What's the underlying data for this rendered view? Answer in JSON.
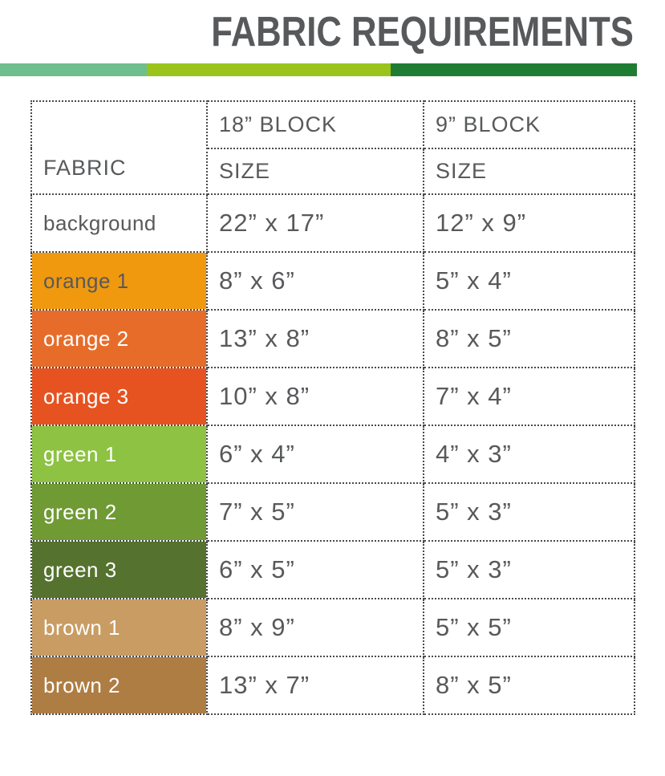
{
  "page": {
    "title": "FABRIC REQUIREMENTS"
  },
  "accent_bar": {
    "segments": [
      {
        "name": "sage-green",
        "color": "#6FBE8D"
      },
      {
        "name": "lime-green",
        "color": "#9AC41C"
      },
      {
        "name": "forest-green",
        "color": "#1E7D33"
      }
    ]
  },
  "table": {
    "text_color": "#58595B",
    "border_color": "#4A4A4C",
    "header": {
      "fabric_label": "FABRIC",
      "columns": [
        {
          "block": "18” BLOCK",
          "size": "SIZE"
        },
        {
          "block": "9” BLOCK",
          "size": "SIZE"
        }
      ]
    },
    "rows": [
      {
        "fabric": "background",
        "swatch": "",
        "label_color": "#58595B",
        "size_18": "22” x 17”",
        "size_9": "12” x 9”"
      },
      {
        "fabric": "orange 1",
        "swatch": "#F0990F",
        "label_color": "#58595B",
        "size_18": "8” x 6”",
        "size_9": "5” x 4”"
      },
      {
        "fabric": "orange 2",
        "swatch": "#E76C2A",
        "label_color": "#FFFFFF",
        "size_18": "13” x 8”",
        "size_9": "8” x 5”"
      },
      {
        "fabric": "orange 3",
        "swatch": "#E65321",
        "label_color": "#FFFFFF",
        "size_18": "10” x 8”",
        "size_9": "7” x 4”"
      },
      {
        "fabric": "green 1",
        "swatch": "#8DC242",
        "label_color": "#FFFFFF",
        "size_18": "6” x 4”",
        "size_9": "4” x 3”"
      },
      {
        "fabric": "green 2",
        "swatch": "#6F9A34",
        "label_color": "#FFFFFF",
        "size_18": "7” x 5”",
        "size_9": "5” x 3”"
      },
      {
        "fabric": "green 3",
        "swatch": "#55722E",
        "label_color": "#FFFFFF",
        "size_18": "6” x 5”",
        "size_9": "5” x 3”"
      },
      {
        "fabric": "brown 1",
        "swatch": "#C89C63",
        "label_color": "#FFFFFF",
        "size_18": "8” x 9”",
        "size_9": "5” x 5”"
      },
      {
        "fabric": "brown 2",
        "swatch": "#AE7D44",
        "label_color": "#FFFFFF",
        "size_18": "13” x 7”",
        "size_9": "8” x 5”"
      }
    ]
  }
}
